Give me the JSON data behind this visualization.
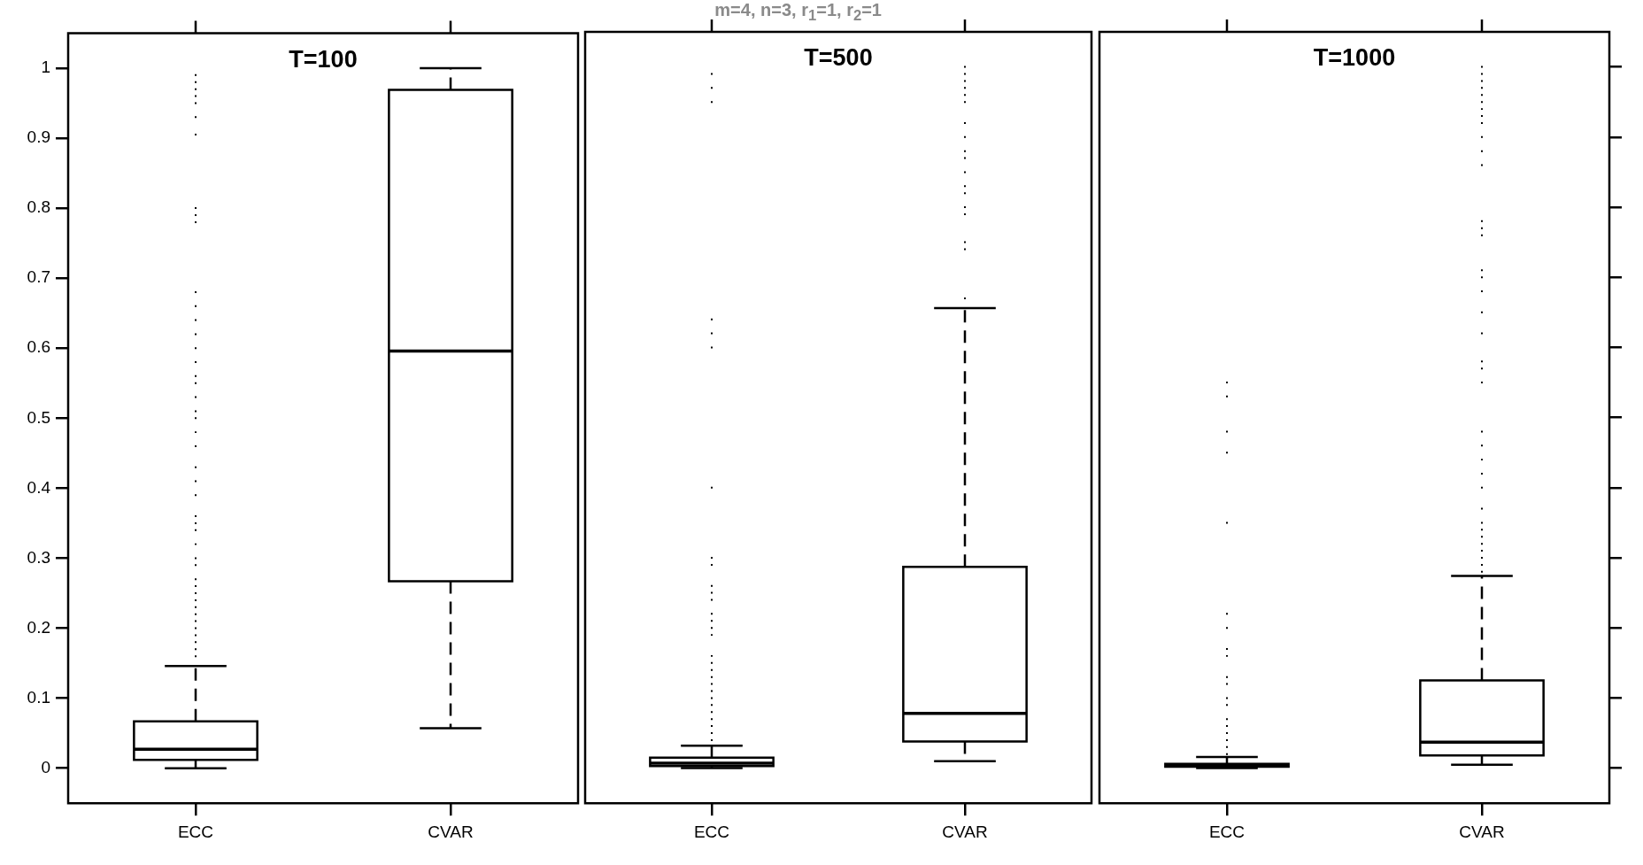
{
  "chart_data": [
    {
      "type": "box",
      "title": "T=100",
      "categories": [
        "ECC",
        "CVAR"
      ],
      "ylim": [
        -0.05,
        1.05
      ],
      "yticks": [
        0,
        0.1,
        0.2,
        0.3,
        0.4,
        0.5,
        0.6,
        0.7,
        0.8,
        0.9,
        1
      ],
      "boxes": [
        {
          "low": 0,
          "q1": 0.012,
          "median": 0.027,
          "q3": 0.067,
          "high": 0.146,
          "outliers": [
            0.99,
            0.98,
            0.97,
            0.96,
            0.95,
            0.93,
            0.905,
            0.8,
            0.79,
            0.78,
            0.68,
            0.66,
            0.64,
            0.62,
            0.6,
            0.58,
            0.56,
            0.55,
            0.53,
            0.51,
            0.5,
            0.48,
            0.46,
            0.43,
            0.41,
            0.39,
            0.36,
            0.35,
            0.34,
            0.32,
            0.3,
            0.29,
            0.27,
            0.26,
            0.25,
            0.24,
            0.23,
            0.22,
            0.21,
            0.2,
            0.19,
            0.18,
            0.17,
            0.16
          ]
        },
        {
          "low": 0.057,
          "q1": 0.267,
          "median": 0.596,
          "q3": 0.969,
          "high": 1.0
        }
      ]
    },
    {
      "type": "box",
      "title": "T=500",
      "subtitle": "m=4,  n=3,  r$_{1}$=1,  r$_{2}$=1",
      "categories": [
        "ECC",
        "CVAR"
      ],
      "ylim": [
        -0.05,
        1.05
      ],
      "yticks": [
        0,
        0.1,
        0.2,
        0.3,
        0.4,
        0.5,
        0.6,
        0.7,
        0.8,
        0.9,
        1
      ],
      "tick_labels": "x",
      "boxes": [
        {
          "low": 0,
          "q1": 0.003,
          "median": 0.007,
          "q3": 0.015,
          "high": 0.032,
          "outliers": [
            0.99,
            0.97,
            0.95,
            0.64,
            0.62,
            0.6,
            0.4,
            0.3,
            0.29,
            0.26,
            0.25,
            0.24,
            0.22,
            0.21,
            0.2,
            0.19,
            0.16,
            0.15,
            0.14,
            0.13,
            0.12,
            0.11,
            0.1,
            0.09,
            0.08,
            0.07,
            0.06,
            0.05,
            0.04
          ]
        },
        {
          "low": 0.01,
          "q1": 0.038,
          "median": 0.078,
          "q3": 0.287,
          "high": 0.656,
          "outliers": [
            0.67,
            0.74,
            0.75,
            0.79,
            0.8,
            0.82,
            0.83,
            0.85,
            0.87,
            0.88,
            0.9,
            0.92,
            0.95,
            0.96,
            0.97,
            0.98,
            0.99,
            1.0
          ]
        }
      ]
    },
    {
      "type": "box",
      "title": "T=1000",
      "categories": [
        "ECC",
        "CVAR"
      ],
      "ylim": [
        -0.05,
        1.05
      ],
      "yticks": [
        0,
        0.1,
        0.2,
        0.3,
        0.4,
        0.5,
        0.6,
        0.7,
        0.8,
        0.9,
        1
      ],
      "tick_labels": "x",
      "boxes": [
        {
          "low": 0,
          "q1": 0.002,
          "median": 0.004,
          "q3": 0.006,
          "high": 0.016,
          "outliers": [
            0.55,
            0.53,
            0.48,
            0.45,
            0.35,
            0.22,
            0.2,
            0.17,
            0.16,
            0.13,
            0.12,
            0.1,
            0.09,
            0.07,
            0.06,
            0.05,
            0.04,
            0.03,
            0.02
          ]
        },
        {
          "low": 0.005,
          "q1": 0.018,
          "median": 0.037,
          "q3": 0.125,
          "high": 0.274,
          "outliers": [
            1.0,
            0.99,
            0.98,
            0.97,
            0.96,
            0.95,
            0.94,
            0.93,
            0.92,
            0.9,
            0.88,
            0.86,
            0.78,
            0.77,
            0.76,
            0.71,
            0.7,
            0.68,
            0.65,
            0.62,
            0.58,
            0.57,
            0.55,
            0.48,
            0.46,
            0.44,
            0.42,
            0.4,
            0.37,
            0.35,
            0.34,
            0.33,
            0.32,
            0.31,
            0.3,
            0.29,
            0.28
          ]
        }
      ]
    }
  ]
}
